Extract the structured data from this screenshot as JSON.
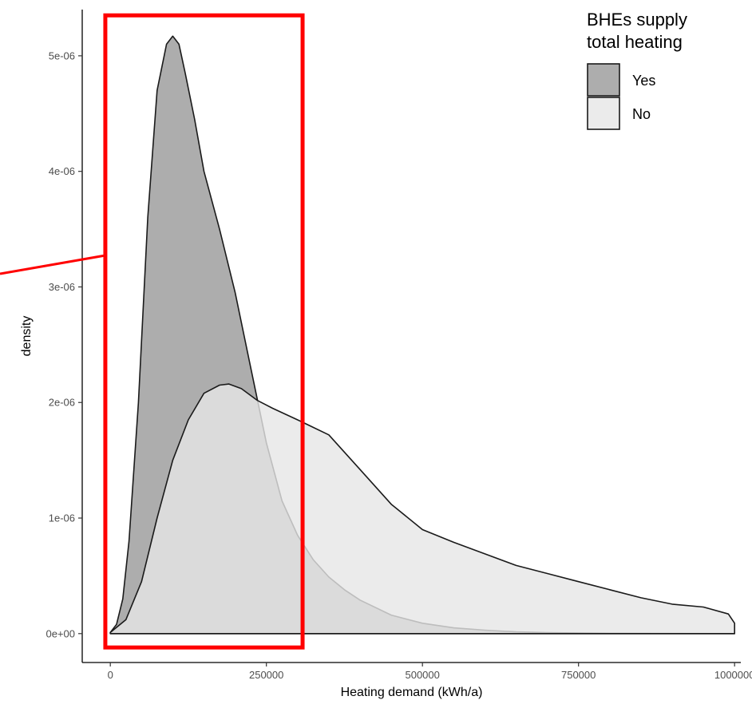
{
  "chart_data": {
    "type": "area",
    "chart_subtype": "density",
    "xlabel": "Heating demand (kWh/a)",
    "ylabel": "density",
    "xlim": [
      -45000,
      1010000
    ],
    "ylim": [
      -2.5e-07,
      5.4e-06
    ],
    "x_ticks": [
      0,
      250000,
      500000,
      750000,
      1000000
    ],
    "x_tick_labels": [
      "0",
      "250000",
      "500000",
      "750000",
      "1000000"
    ],
    "y_ticks": [
      0,
      1e-06,
      2e-06,
      3e-06,
      4e-06,
      5e-06
    ],
    "y_tick_labels": [
      "0e+00",
      "1e-06",
      "2e-06",
      "3e-06",
      "4e-06",
      "5e-06"
    ],
    "grid": false,
    "legend": {
      "title_lines": [
        "BHEs supply",
        "total heating"
      ],
      "position": "top-right"
    },
    "series": [
      {
        "name": "Yes",
        "fill": "#999999",
        "x": [
          0,
          10000,
          20000,
          30000,
          45000,
          60000,
          75000,
          90000,
          100000,
          110000,
          120000,
          135000,
          150000,
          175000,
          200000,
          225000,
          250000,
          275000,
          300000,
          325000,
          350000,
          375000,
          400000,
          450000,
          500000,
          550000,
          600000,
          650000,
          700000,
          800000,
          900000,
          1000000
        ],
        "y": [
          1e-08,
          8e-08,
          3e-07,
          8e-07,
          2e-06,
          3.6e-06,
          4.7e-06,
          5.1e-06,
          5.17e-06,
          5.1e-06,
          4.85e-06,
          4.45e-06,
          4e-06,
          3.5e-06,
          2.95e-06,
          2.3e-06,
          1.65e-06,
          1.15e-06,
          8.5e-07,
          6.4e-07,
          4.9e-07,
          3.8e-07,
          2.9e-07,
          1.6e-07,
          9e-08,
          5e-08,
          3e-08,
          1.5e-08,
          8e-09,
          3e-09,
          1e-09,
          1e-10
        ]
      },
      {
        "name": "No",
        "fill": "#e6e6e6",
        "x": [
          0,
          25000,
          50000,
          75000,
          100000,
          125000,
          150000,
          175000,
          190000,
          210000,
          235000,
          260000,
          300000,
          350000,
          400000,
          450000,
          500000,
          550000,
          600000,
          650000,
          700000,
          750000,
          800000,
          850000,
          900000,
          950000,
          990000,
          1000000
        ],
        "y": [
          1e-08,
          1.2e-07,
          4.5e-07,
          1e-06,
          1.5e-06,
          1.85e-06,
          2.08e-06,
          2.15e-06,
          2.16e-06,
          2.12e-06,
          2.02e-06,
          1.95e-06,
          1.85e-06,
          1.72e-06,
          1.42e-06,
          1.12e-06,
          9e-07,
          7.9e-07,
          6.9e-07,
          5.9e-07,
          5.2e-07,
          4.5e-07,
          3.8e-07,
          3.1e-07,
          2.55e-07,
          2.3e-07,
          1.7e-07,
          9e-08
        ]
      }
    ],
    "annotations": [
      {
        "type": "rectangle",
        "color": "#ff0000",
        "x_range": [
          -8000,
          308000
        ],
        "y_range": [
          -1.2e-07,
          5.35e-06
        ]
      },
      {
        "type": "line",
        "color": "#ff0000",
        "description": "callout line leaving the left edge toward the rectangle"
      }
    ]
  }
}
